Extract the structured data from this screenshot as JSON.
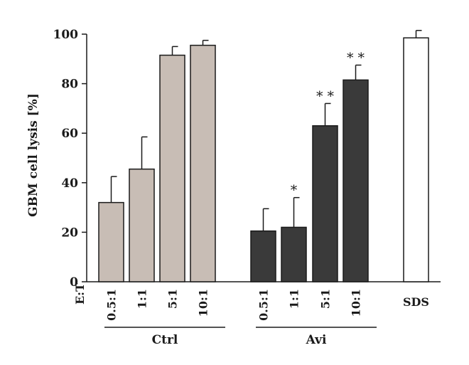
{
  "chart_data": {
    "type": "bar",
    "title": "",
    "ylabel": "GBM cell lysis [%]",
    "xlabel": "E:T",
    "ylim": [
      0,
      100
    ],
    "yticks": [
      0,
      20,
      40,
      60,
      80,
      100
    ],
    "grid": false,
    "bars": [
      {
        "group": "Ctrl",
        "label": "0.5:1",
        "value": 32,
        "error": 10.5,
        "color": "#c8bdb5",
        "sig": ""
      },
      {
        "group": "Ctrl",
        "label": "1:1",
        "value": 45.5,
        "error": 13,
        "color": "#c8bdb5",
        "sig": ""
      },
      {
        "group": "Ctrl",
        "label": "5:1",
        "value": 91.5,
        "error": 3.5,
        "color": "#c8bdb5",
        "sig": ""
      },
      {
        "group": "Ctrl",
        "label": "10:1",
        "value": 95.5,
        "error": 2,
        "color": "#c8bdb5",
        "sig": ""
      },
      {
        "group": "Avi",
        "label": "0.5:1",
        "value": 20.5,
        "error": 9,
        "color": "#3a3a3a",
        "sig": ""
      },
      {
        "group": "Avi",
        "label": "1:1",
        "value": 22,
        "error": 12,
        "color": "#3a3a3a",
        "sig": "*"
      },
      {
        "group": "Avi",
        "label": "5:1",
        "value": 63,
        "error": 9,
        "color": "#3a3a3a",
        "sig": "**"
      },
      {
        "group": "Avi",
        "label": "10:1",
        "value": 81.5,
        "error": 6,
        "color": "#3a3a3a",
        "sig": "**"
      },
      {
        "group": "",
        "label": "SDS",
        "value": 98.5,
        "error": 3,
        "color": "#ffffff",
        "sig": ""
      }
    ],
    "groups": [
      "Ctrl",
      "Avi"
    ]
  }
}
